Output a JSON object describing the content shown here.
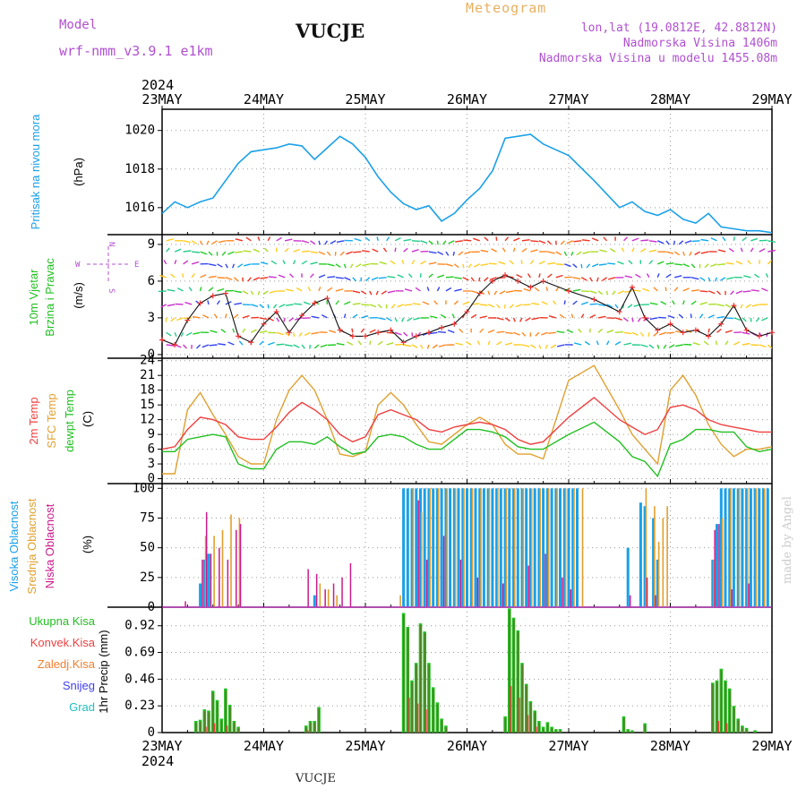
{
  "header": {
    "model_label": "Model",
    "model_version": "wrf-nmm_v3.9.1 e1km",
    "station_title": "VUCJE",
    "meteogram_label": "Meteogram",
    "lonlat": "lon,lat (19.0812E, 42.8812N)",
    "altitude": "Nadmorska Visina 1406m",
    "model_altitude": "Nadmorska Visina u modelu 1455.08m"
  },
  "footer": {
    "station": "VUCJE"
  },
  "signature": "made by Angel",
  "time_axis": {
    "year": "2024",
    "ticks": [
      "23MAY",
      "24MAY",
      "25MAY",
      "26MAY",
      "27MAY",
      "28MAY",
      "29MAY"
    ]
  },
  "colors": {
    "pressure": "#1aa0e8",
    "wind_label": "#22c022",
    "temp2m": "#ee4040",
    "sfc_temp": "#e0a030",
    "dewpt": "#22c022",
    "cloud_high": "#1aa0e8",
    "cloud_mid": "#e0a030",
    "cloud_low": "#cc1a8a",
    "precip_total": "#22c022",
    "precip_conv": "#ee4040",
    "precip_frz": "#f08030",
    "precip_snow": "#4040ee",
    "precip_grad": "#20c0c0",
    "compass": "#b050d0"
  },
  "panels": {
    "pressure": {
      "title": "Pritisak na nivou mora",
      "unit": "(hPa)"
    },
    "wind": {
      "title1": "10m Vjetar",
      "title2": "Brzina i Pravac",
      "unit": "(m/s)",
      "compass_w": "W",
      "compass_e": "E",
      "compass_n": "N",
      "compass_s": "S"
    },
    "temp": {
      "title_2m": "2m Temp",
      "title_sfc": "SFC Temp",
      "title_dew": "dewpt Temp",
      "unit": "(C)"
    },
    "cloud": {
      "title_high": "Visoka Oblacnost",
      "title_mid": "Srednja Oblacnost",
      "title_low": "Niska Oblacnost",
      "unit": "(%)"
    },
    "precip": {
      "unit": "1hr Precip (mm)",
      "legend": [
        "Ukupna Kisa",
        "Konvek.Kisa",
        "Zaledj.Kisa",
        "Snijeg",
        "Grad"
      ]
    }
  },
  "chart_data": [
    {
      "type": "line",
      "x_unit": "hours from 2024-05-23 00:00",
      "ylabel": "(hPa)",
      "ylim": [
        1014.6,
        1021.1
      ],
      "yticks": [
        "1016",
        "1018",
        "1020"
      ],
      "series": [
        {
          "name": "Pritisak na nivou mora",
          "x": [
            0,
            3,
            6,
            9,
            12,
            15,
            18,
            21,
            24,
            27,
            30,
            33,
            36,
            39,
            42,
            45,
            48,
            51,
            54,
            57,
            60,
            63,
            66,
            69,
            72,
            75,
            78,
            81,
            84,
            87,
            90,
            96,
            102,
            108,
            111,
            114,
            117,
            120,
            123,
            126,
            129,
            132,
            135,
            138,
            141,
            144
          ],
          "values": [
            1015.7,
            1016.3,
            1016.0,
            1016.3,
            1016.5,
            1017.4,
            1018.3,
            1018.9,
            1019.0,
            1019.1,
            1019.3,
            1019.2,
            1018.5,
            1019.1,
            1019.7,
            1019.3,
            1018.6,
            1017.6,
            1016.8,
            1016.2,
            1015.9,
            1016.1,
            1015.3,
            1015.7,
            1016.4,
            1017.0,
            1017.9,
            1019.6,
            1019.7,
            1019.8,
            1019.3,
            1018.7,
            1017.4,
            1016.0,
            1016.3,
            1015.8,
            1015.6,
            1015.9,
            1015.4,
            1015.2,
            1015.7,
            1015.0,
            1014.9,
            1014.8,
            1014.8,
            1014.7
          ]
        }
      ]
    },
    {
      "type": "line",
      "x_unit": "hours from 2024-05-23 00:00",
      "ylabel": "(m/s)",
      "ylim": [
        -0.3,
        9.8
      ],
      "yticks": [
        "0",
        "3",
        "6",
        "9"
      ],
      "series": [
        {
          "name": "10m Vjetar",
          "x": [
            0,
            3,
            6,
            9,
            12,
            15,
            18,
            21,
            24,
            27,
            30,
            33,
            36,
            39,
            42,
            45,
            48,
            51,
            54,
            57,
            60,
            63,
            66,
            69,
            72,
            75,
            78,
            81,
            84,
            87,
            90,
            96,
            102,
            108,
            111,
            114,
            117,
            120,
            123,
            126,
            129,
            132,
            135,
            138,
            141,
            144
          ],
          "values": [
            1.2,
            0.8,
            2.8,
            4.2,
            4.8,
            5.0,
            1.5,
            1.0,
            2.5,
            3.5,
            1.8,
            3.2,
            4.2,
            4.6,
            2.0,
            1.5,
            1.5,
            1.8,
            2.0,
            1.0,
            1.5,
            1.8,
            2.2,
            2.5,
            3.5,
            5.0,
            6.0,
            6.5,
            6.0,
            5.5,
            6.0,
            5.2,
            4.5,
            3.5,
            5.5,
            3.0,
            2.0,
            2.5,
            1.8,
            2.0,
            1.5,
            2.5,
            4.0,
            2.0,
            1.5,
            1.8
          ]
        }
      ]
    },
    {
      "type": "line",
      "x_unit": "hours from 2024-05-23 00:00",
      "ylabel": "(C)",
      "ylim": [
        -1.0,
        24.5
      ],
      "yticks": [
        "0",
        "3",
        "6",
        "9",
        "12",
        "15",
        "18",
        "21",
        "24"
      ],
      "series": [
        {
          "name": "2m Temp",
          "x": [
            0,
            3,
            6,
            9,
            12,
            15,
            18,
            21,
            24,
            27,
            30,
            33,
            36,
            39,
            42,
            45,
            48,
            51,
            54,
            57,
            60,
            63,
            66,
            69,
            72,
            75,
            78,
            81,
            84,
            87,
            90,
            96,
            102,
            108,
            111,
            114,
            117,
            120,
            123,
            126,
            129,
            132,
            135,
            138,
            141,
            144
          ],
          "values": [
            6.0,
            6.5,
            10.0,
            12.5,
            12.0,
            11.0,
            8.5,
            8.0,
            8.0,
            10.5,
            13.5,
            15.5,
            14.0,
            12.0,
            9.0,
            7.5,
            8.5,
            13.0,
            14.0,
            13.0,
            12.0,
            10.0,
            9.5,
            10.5,
            11.0,
            11.5,
            11.0,
            10.0,
            8.0,
            7.0,
            7.5,
            12.5,
            16.5,
            12.0,
            10.5,
            9.0,
            10.0,
            14.5,
            15.0,
            14.0,
            12.0,
            11.0,
            10.5,
            10.0,
            9.5,
            9.5
          ]
        },
        {
          "name": "SFC Temp",
          "x": [
            0,
            3,
            6,
            9,
            12,
            15,
            18,
            21,
            24,
            27,
            30,
            33,
            36,
            39,
            42,
            45,
            48,
            51,
            54,
            57,
            60,
            63,
            66,
            69,
            72,
            75,
            78,
            81,
            84,
            87,
            90,
            96,
            102,
            108,
            111,
            114,
            117,
            120,
            123,
            126,
            129,
            132,
            135,
            138,
            141,
            144
          ],
          "values": [
            1.0,
            1.0,
            14.0,
            17.5,
            13.0,
            9.0,
            4.5,
            3.0,
            3.0,
            12.0,
            18.0,
            21.0,
            18.0,
            12.0,
            5.0,
            4.5,
            5.5,
            15.0,
            17.5,
            15.0,
            11.0,
            7.5,
            7.0,
            9.0,
            11.0,
            12.5,
            11.0,
            7.0,
            5.0,
            5.0,
            4.0,
            20.0,
            23.0,
            14.0,
            9.0,
            6.0,
            3.0,
            18.0,
            21.0,
            17.0,
            11.0,
            7.0,
            4.5,
            6.0,
            6.0,
            6.5
          ]
        },
        {
          "name": "dewpt Temp",
          "x": [
            0,
            3,
            6,
            9,
            12,
            15,
            18,
            21,
            24,
            27,
            30,
            33,
            36,
            39,
            42,
            45,
            48,
            51,
            54,
            57,
            60,
            63,
            66,
            69,
            72,
            75,
            78,
            81,
            84,
            87,
            90,
            96,
            102,
            108,
            111,
            114,
            117,
            120,
            123,
            126,
            129,
            132,
            135,
            138,
            141,
            144
          ],
          "values": [
            5.5,
            5.5,
            8.0,
            8.5,
            9.0,
            8.5,
            3.0,
            2.0,
            2.0,
            6.0,
            7.5,
            7.5,
            7.0,
            8.5,
            6.5,
            5.0,
            5.5,
            8.5,
            9.0,
            8.5,
            7.0,
            6.0,
            6.0,
            8.0,
            10.0,
            10.0,
            9.5,
            8.5,
            6.5,
            6.0,
            6.0,
            9.0,
            11.5,
            7.5,
            4.5,
            3.5,
            0.5,
            7.0,
            8.0,
            10.0,
            10.0,
            9.5,
            9.5,
            6.5,
            5.5,
            6.0
          ]
        }
      ]
    },
    {
      "type": "bar",
      "x_unit": "hours from 2024-05-23 00:00",
      "ylabel": "(%)",
      "ylim": [
        0,
        104
      ],
      "yticks": [
        "0",
        "25",
        "50",
        "75",
        "100"
      ],
      "series": [
        {
          "name": "Visoka Oblacnost",
          "x": [
            9,
            10,
            11,
            36,
            57,
            58,
            59,
            60,
            61,
            62,
            63,
            64,
            65,
            66,
            67,
            68,
            69,
            70,
            71,
            72,
            73,
            74,
            75,
            76,
            77,
            78,
            79,
            80,
            81,
            82,
            83,
            84,
            85,
            86,
            87,
            88,
            89,
            90,
            91,
            92,
            93,
            94,
            95,
            96,
            97,
            98,
            110,
            113,
            114,
            116,
            117,
            130,
            131,
            132,
            133,
            134,
            135,
            136,
            137,
            138,
            139,
            140,
            141,
            142,
            143
          ],
          "values": [
            20,
            40,
            45,
            10,
            100,
            100,
            100,
            100,
            100,
            100,
            100,
            100,
            100,
            100,
            100,
            100,
            100,
            100,
            100,
            100,
            100,
            100,
            100,
            100,
            100,
            100,
            100,
            100,
            100,
            100,
            100,
            100,
            100,
            100,
            100,
            100,
            100,
            100,
            100,
            100,
            100,
            100,
            100,
            100,
            100,
            100,
            50,
            88,
            85,
            75,
            40,
            40,
            70,
            100,
            100,
            100,
            100,
            100,
            100,
            100,
            100,
            100,
            100,
            100,
            100
          ]
        },
        {
          "name": "Srednja Oblacnost",
          "x": [
            10,
            12,
            14,
            16,
            18,
            37,
            39,
            41,
            56,
            59,
            61,
            63,
            65,
            67,
            69,
            71,
            73,
            75,
            77,
            79,
            81,
            83,
            85,
            87,
            89,
            91,
            93,
            95,
            97,
            99,
            114,
            116,
            117,
            118,
            119,
            130,
            132,
            134,
            136,
            138,
            140,
            142
          ],
          "values": [
            60,
            60,
            65,
            78,
            75,
            20,
            15,
            10,
            10,
            100,
            80,
            100,
            100,
            100,
            100,
            100,
            100,
            100,
            100,
            100,
            100,
            100,
            100,
            100,
            100,
            100,
            100,
            100,
            100,
            100,
            100,
            85,
            55,
            75,
            85,
            40,
            75,
            100,
            100,
            100,
            100,
            100
          ]
        },
        {
          "name": "Niska Oblacnost",
          "x": [
            5,
            9,
            10,
            11,
            13,
            15,
            17,
            18,
            34,
            36,
            38,
            40,
            42,
            44,
            60,
            62,
            66,
            70,
            74,
            80,
            86,
            90,
            94,
            96,
            110,
            114,
            116,
            130,
            131,
            134,
            138
          ],
          "values": [
            5,
            40,
            80,
            45,
            50,
            40,
            65,
            70,
            32,
            28,
            15,
            20,
            25,
            37,
            90,
            40,
            60,
            40,
            25,
            20,
            35,
            45,
            25,
            15,
            10,
            25,
            10,
            65,
            70,
            15,
            20
          ]
        }
      ]
    },
    {
      "type": "bar",
      "x_unit": "hours from 2024-05-23 00:00",
      "ylabel": "1hr Precip (mm)",
      "ylim": [
        0,
        1.08
      ],
      "yticks": [
        "0",
        "0.23",
        "0.46",
        "0.69",
        "0.92"
      ],
      "series": [
        {
          "name": "Ukupna Kisa",
          "x": [
            8,
            9,
            10,
            11,
            12,
            13,
            14,
            15,
            16,
            17,
            18,
            34,
            35,
            36,
            37,
            57,
            58,
            59,
            60,
            61,
            62,
            63,
            64,
            65,
            66,
            67,
            81,
            82,
            83,
            84,
            85,
            86,
            87,
            88,
            89,
            90,
            91,
            92,
            93,
            94,
            109,
            110,
            111,
            114,
            130,
            131,
            132,
            133,
            134,
            135,
            136,
            137,
            138,
            140
          ],
          "values": [
            0.1,
            0.11,
            0.2,
            0.19,
            0.36,
            0.28,
            0.12,
            0.38,
            0.24,
            0.1,
            0.05,
            0.06,
            0.1,
            0.1,
            0.22,
            1.03,
            0.91,
            0.45,
            0.6,
            0.94,
            0.87,
            0.6,
            0.39,
            0.26,
            0.12,
            0.06,
            0.14,
            1.07,
            0.99,
            0.88,
            0.6,
            0.42,
            0.27,
            0.19,
            0.1,
            0.05,
            0.09,
            0.05,
            0.03,
            0.03,
            0.14,
            0.03,
            0.02,
            0.08,
            0.43,
            0.45,
            0.55,
            0.45,
            0.38,
            0.23,
            0.12,
            0.06,
            0.04,
            0.02
          ]
        },
        {
          "name": "Konvek.Kisa",
          "x": [
            10,
            12,
            15,
            34,
            58,
            60,
            62,
            82,
            84,
            86,
            88,
            131,
            133
          ],
          "values": [
            0.05,
            0.08,
            0.06,
            0.02,
            0.3,
            0.25,
            0.2,
            0.4,
            0.3,
            0.15,
            0.05,
            0.1,
            0.08
          ]
        },
        {
          "name": "Zaledj.Kisa",
          "x": [],
          "values": []
        },
        {
          "name": "Snijeg",
          "x": [],
          "values": []
        },
        {
          "name": "Grad",
          "x": [],
          "values": []
        }
      ]
    }
  ]
}
